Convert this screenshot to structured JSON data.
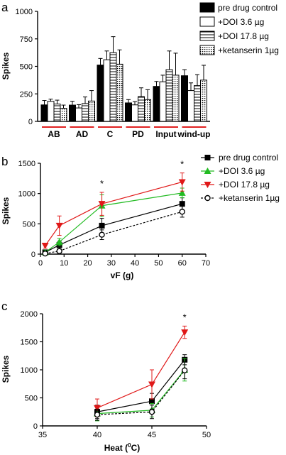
{
  "chart_data": [
    {
      "type": "bar",
      "panel_label": "a",
      "ylabel": "Spikes",
      "ylim": [
        0,
        1000
      ],
      "yticks": [
        0,
        250,
        500,
        750,
        1000
      ],
      "categories": [
        "AB",
        "AD",
        "C",
        "PD",
        "Input",
        "wind-up"
      ],
      "series": [
        {
          "name": "pre drug control",
          "pattern": "solid-black",
          "values": [
            150,
            148,
            512,
            168,
            318,
            415
          ],
          "errors": [
            40,
            35,
            60,
            30,
            45,
            55
          ]
        },
        {
          "name": "+DOI 3.6 µg",
          "pattern": "white",
          "values": [
            182,
            122,
            560,
            150,
            360,
            280
          ],
          "errors": [
            20,
            30,
            80,
            30,
            60,
            70
          ]
        },
        {
          "name": "+DOI 17.8 µg",
          "pattern": "horizontal-stripes",
          "values": [
            158,
            162,
            625,
            225,
            470,
            325
          ],
          "errors": [
            35,
            60,
            145,
            80,
            170,
            100
          ]
        },
        {
          "name": "+ketanserin 1µg",
          "pattern": "dotted",
          "values": [
            118,
            185,
            520,
            198,
            420,
            375
          ],
          "errors": [
            30,
            95,
            130,
            90,
            200,
            135
          ]
        }
      ]
    },
    {
      "type": "line",
      "panel_label": "b",
      "xlabel": "vF (g)",
      "ylabel": "Spikes",
      "xlim": [
        0,
        70
      ],
      "ylim": [
        0,
        1500
      ],
      "xticks": [
        0,
        10,
        20,
        30,
        40,
        50,
        60,
        70
      ],
      "yticks": [
        0,
        500,
        1000,
        1500
      ],
      "annotations": [
        {
          "text": "*",
          "x": 26
        },
        {
          "text": "*",
          "x": 60
        }
      ],
      "series": [
        {
          "name": "pre drug control",
          "color": "#000000",
          "marker": "square",
          "dashed": false,
          "x": [
            2,
            8,
            26,
            60
          ],
          "y": [
            30,
            150,
            470,
            830
          ],
          "errors": [
            20,
            60,
            120,
            100
          ]
        },
        {
          "name": "+DOI 3.6 µg",
          "color": "#22bb22",
          "marker": "triangle-up",
          "dashed": false,
          "x": [
            2,
            8,
            26,
            60
          ],
          "y": [
            30,
            200,
            800,
            1010
          ],
          "errors": [
            20,
            60,
            180,
            80
          ]
        },
        {
          "name": "+DOI 17.8 µg",
          "color": "#e01818",
          "marker": "triangle-down",
          "dashed": false,
          "x": [
            2,
            8,
            26,
            60
          ],
          "y": [
            140,
            470,
            830,
            1190
          ],
          "errors": [
            40,
            160,
            190,
            150
          ]
        },
        {
          "name": "+ketanserin 1µg",
          "color": "#000000",
          "marker": "circle-open",
          "dashed": true,
          "x": [
            2,
            8,
            26,
            60
          ],
          "y": [
            10,
            50,
            320,
            700
          ],
          "errors": [
            10,
            30,
            80,
            90
          ]
        }
      ]
    },
    {
      "type": "line",
      "panel_label": "c",
      "xlabel": "Heat (",
      "xlabel_sup": "0",
      "xlabel_after": "C)",
      "ylabel": "Spikes",
      "xlim": [
        35,
        50
      ],
      "ylim": [
        0,
        2000
      ],
      "xticks": [
        35,
        40,
        45,
        50
      ],
      "yticks": [
        0,
        500,
        1000,
        1500,
        2000
      ],
      "annotations": [
        {
          "text": "*",
          "x": 48
        }
      ],
      "series": [
        {
          "name": "pre drug control",
          "color": "#000000",
          "marker": "square",
          "dashed": false,
          "x": [
            40,
            45,
            48
          ],
          "y": [
            250,
            440,
            1180
          ],
          "errors": [
            120,
            140,
            90
          ]
        },
        {
          "name": "+DOI 3.6 µg",
          "color": "#22bb22",
          "marker": "triangle-up",
          "dashed": false,
          "x": [
            40,
            45,
            48
          ],
          "y": [
            220,
            280,
            1000
          ],
          "errors": [
            130,
            120,
            200
          ]
        },
        {
          "name": "+DOI 17.8 µg",
          "color": "#e01818",
          "marker": "triangle-down",
          "dashed": false,
          "x": [
            40,
            45,
            48
          ],
          "y": [
            320,
            740,
            1670
          ],
          "errors": [
            160,
            260,
            110
          ]
        },
        {
          "name": "+ketanserin 1µg",
          "color": "#000000",
          "marker": "circle-open",
          "dashed": true,
          "x": [
            40,
            45,
            48
          ],
          "y": [
            200,
            250,
            990
          ],
          "errors": [
            100,
            120,
            150
          ]
        }
      ]
    }
  ]
}
